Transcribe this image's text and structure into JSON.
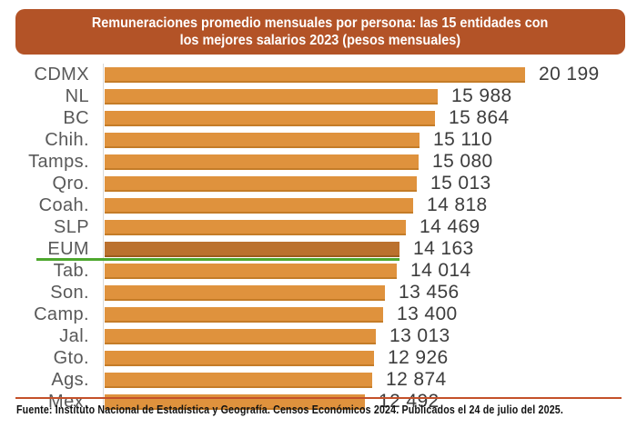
{
  "title": {
    "line1": "Remuneraciones promedio mensuales por persona: las 15 entidades con",
    "line2": "los mejores salarios 2023 (pesos mensuales)"
  },
  "footer": {
    "source": "Fuente: Instituto Nacional de Estadística y Geografía. Censos Económicos 2024. Publicados el 24 de julio del 2025."
  },
  "colors": {
    "title_box": "#b35327",
    "bar": "#df923d",
    "bar_edge": "#c47c28",
    "highlight_bar": "#bb712e",
    "highlight_bar_edge": "#9a5c1e",
    "highlight_underline": "#4ea72e",
    "axis_line": "#d9d9d9",
    "footer_rule": "#c4512a",
    "category_text": "#595959",
    "value_text": "#3d3d3d"
  },
  "chart_data": {
    "type": "bar",
    "orientation": "horizontal",
    "title": "Remuneraciones promedio mensuales por persona: las 15 entidades con los mejores salarios 2023 (pesos mensuales)",
    "xlabel": "",
    "ylabel": "",
    "xlim": [
      0,
      20199
    ],
    "grid": false,
    "legend": false,
    "value_labels_position": "outside-end",
    "categories": [
      "CDMX",
      "NL",
      "BC",
      "Chih.",
      "Tamps.",
      "Qro.",
      "Coah.",
      "SLP",
      "EUM",
      "Tab.",
      "Son.",
      "Camp.",
      "Jal.",
      "Gto.",
      "Ags.",
      "Mex."
    ],
    "values": [
      20199,
      15988,
      15864,
      15110,
      15080,
      15013,
      14818,
      14469,
      14163,
      14014,
      13456,
      13400,
      13013,
      12926,
      12874,
      12492
    ],
    "value_labels": [
      "20 199",
      "15 988",
      "15 864",
      "15 110",
      "15 080",
      "15 013",
      "14 818",
      "14 469",
      "14 163",
      "14 014",
      "13 456",
      "13 400",
      "13 013",
      "12 926",
      "12 874",
      "12 492"
    ],
    "highlight_category": "EUM"
  }
}
